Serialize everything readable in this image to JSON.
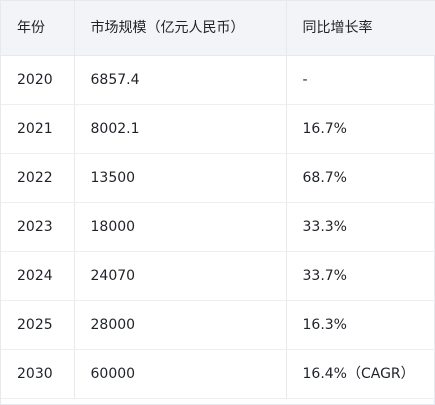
{
  "table": {
    "headers": [
      "年份",
      "市场规模（亿元人民币）",
      "同比增长率"
    ],
    "rows": [
      [
        "2020",
        "6857.4",
        "-"
      ],
      [
        "2021",
        "8002.1",
        "16.7%"
      ],
      [
        "2022",
        "13500",
        "68.7%"
      ],
      [
        "2023",
        "18000",
        "33.3%"
      ],
      [
        "2024",
        "24070",
        "33.7%"
      ],
      [
        "2025",
        "28000",
        "16.3%"
      ],
      [
        "2030",
        "60000",
        "16.4%（CAGR）"
      ]
    ]
  }
}
